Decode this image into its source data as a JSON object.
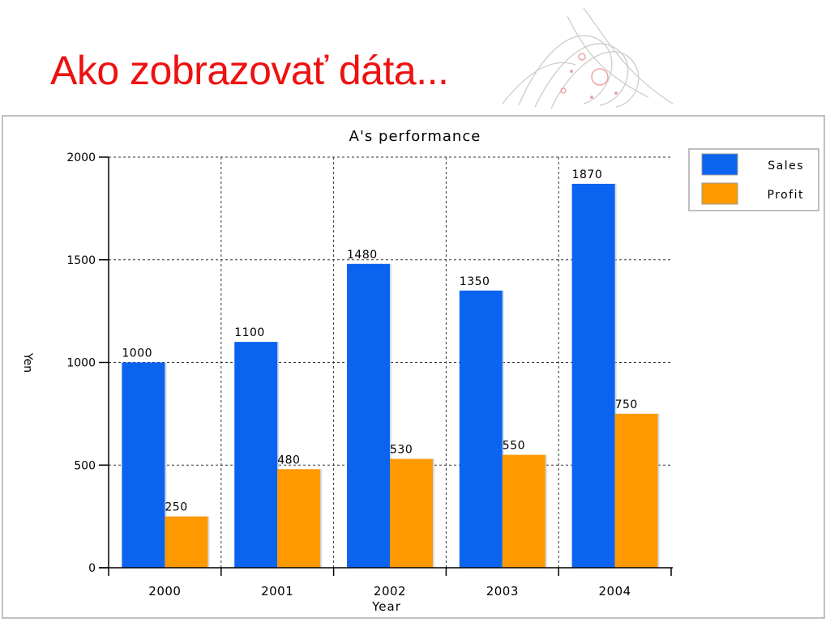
{
  "slide": {
    "title": "Ako zobrazovať dáta..."
  },
  "chart_data": {
    "type": "bar",
    "title": "A's performance",
    "xlabel": "Year",
    "ylabel": "Yen",
    "categories": [
      "2000",
      "2001",
      "2002",
      "2003",
      "2004"
    ],
    "series": [
      {
        "name": "Sales",
        "color": "#0a64f0",
        "values": [
          1000,
          1100,
          1480,
          1350,
          1870
        ]
      },
      {
        "name": "Profit",
        "color": "#ff9900",
        "values": [
          250,
          480,
          530,
          550,
          750
        ]
      }
    ],
    "ylim": [
      0,
      2000
    ],
    "yticks": [
      0,
      500,
      1000,
      1500,
      2000
    ],
    "grid": true,
    "legend": "top-right",
    "data_labels": true
  }
}
